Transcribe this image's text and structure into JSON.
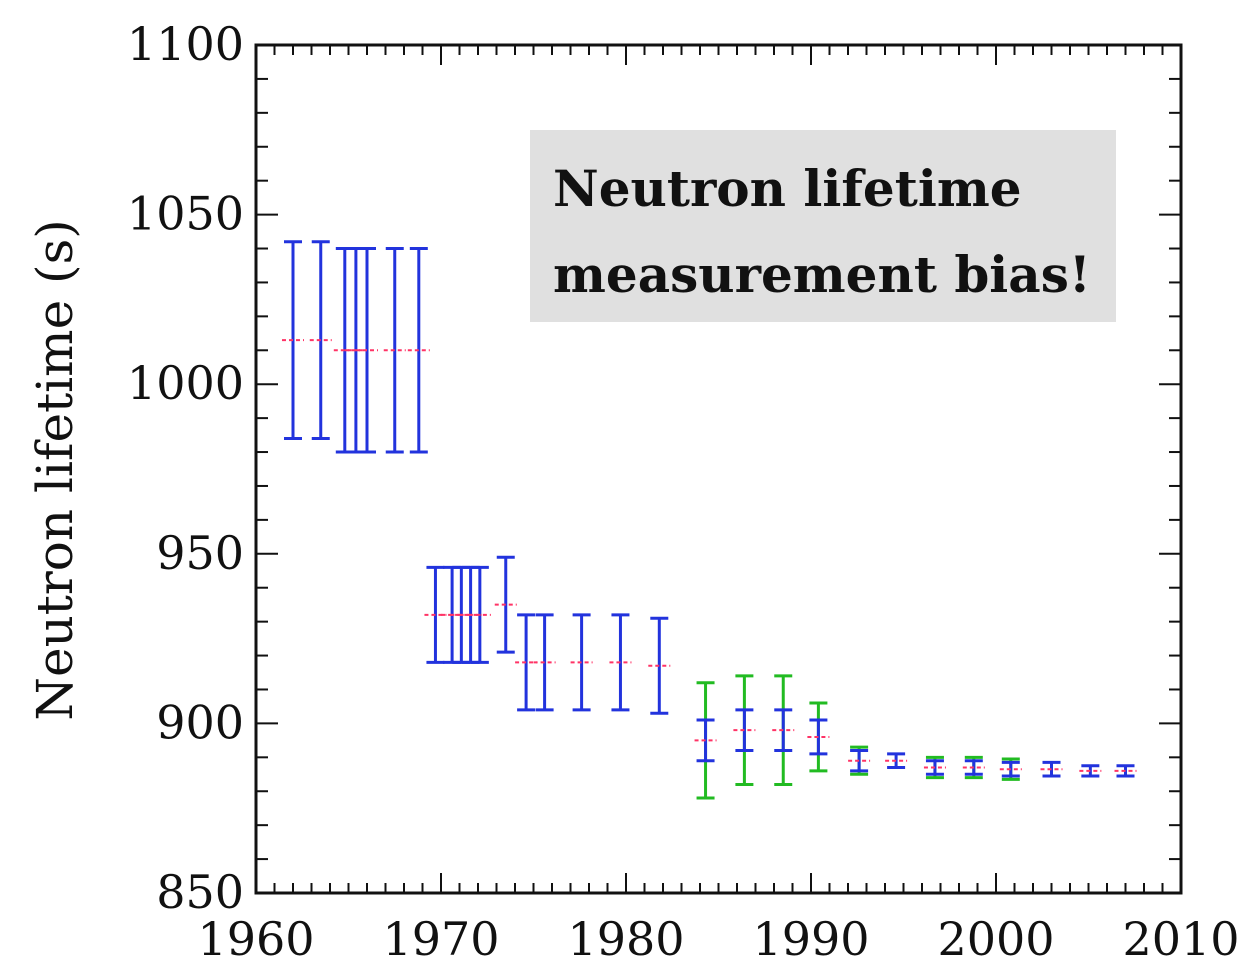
{
  "chart_data": {
    "type": "scatter",
    "title": "",
    "xlabel": "",
    "ylabel": "Neutron lifetime (s)",
    "xlim": [
      1960,
      2010
    ],
    "ylim": [
      850,
      1100
    ],
    "x_ticks": [
      1960,
      1970,
      1980,
      1990,
      2000,
      2010
    ],
    "y_ticks": [
      850,
      900,
      950,
      1000,
      1050,
      1100
    ],
    "x_tick_labels": [
      "1960",
      "1970",
      "1980",
      "1990",
      "2000",
      "2010"
    ],
    "y_tick_labels": [
      "850",
      "900",
      "950",
      "1000",
      "1050",
      "1100"
    ],
    "annotation": {
      "lines": [
        "Neutron lifetime",
        "measurement bias!"
      ],
      "background": "#e0e0e0"
    },
    "colors": {
      "blue": "#2233dd",
      "green": "#22bb22",
      "center": "#ff3366"
    },
    "series": [
      {
        "color": "blue",
        "points": [
          {
            "x": 1962,
            "y": 1013,
            "err": 29
          },
          {
            "x": 1963.5,
            "y": 1013,
            "err": 29
          },
          {
            "x": 1964.8,
            "y": 1010,
            "err": 30
          },
          {
            "x": 1965.4,
            "y": 1010,
            "err": 30
          },
          {
            "x": 1966,
            "y": 1010,
            "err": 30
          },
          {
            "x": 1967.5,
            "y": 1010,
            "err": 30
          },
          {
            "x": 1968.8,
            "y": 1010,
            "err": 30
          },
          {
            "x": 1969.7,
            "y": 932,
            "err": 14
          },
          {
            "x": 1970.6,
            "y": 932,
            "err": 14
          },
          {
            "x": 1971.1,
            "y": 932,
            "err": 14
          },
          {
            "x": 1971.6,
            "y": 932,
            "err": 14
          },
          {
            "x": 1972.1,
            "y": 932,
            "err": 14
          },
          {
            "x": 1973.5,
            "y": 935,
            "err": 14
          },
          {
            "x": 1974.6,
            "y": 918,
            "err": 14
          },
          {
            "x": 1975.6,
            "y": 918,
            "err": 14
          },
          {
            "x": 1977.6,
            "y": 918,
            "err": 14
          },
          {
            "x": 1979.7,
            "y": 918,
            "err": 14
          },
          {
            "x": 1981.8,
            "y": 917,
            "err": 14
          },
          {
            "x": 1984.3,
            "y": 895,
            "err": 6
          },
          {
            "x": 1986.4,
            "y": 898,
            "err": 6
          },
          {
            "x": 1988.5,
            "y": 898,
            "err": 6
          },
          {
            "x": 1990.4,
            "y": 896,
            "err": 5
          },
          {
            "x": 1992.6,
            "y": 889,
            "err": 3
          },
          {
            "x": 1994.6,
            "y": 889,
            "err": 2
          },
          {
            "x": 1996.7,
            "y": 887,
            "err": 2
          },
          {
            "x": 1998.8,
            "y": 887,
            "err": 2
          },
          {
            "x": 2000.8,
            "y": 886.5,
            "err": 2
          },
          {
            "x": 2003,
            "y": 886.5,
            "err": 2
          },
          {
            "x": 2005.1,
            "y": 886,
            "err": 1.5
          },
          {
            "x": 2007,
            "y": 886,
            "err": 1.5
          }
        ]
      },
      {
        "color": "green",
        "points": [
          {
            "x": 1984.3,
            "y": 895,
            "err": 17
          },
          {
            "x": 1986.4,
            "y": 898,
            "err": 16
          },
          {
            "x": 1988.5,
            "y": 898,
            "err": 16
          },
          {
            "x": 1990.4,
            "y": 896,
            "err": 10
          },
          {
            "x": 1992.6,
            "y": 889,
            "err": 4
          },
          {
            "x": 1996.7,
            "y": 887,
            "err": 3
          },
          {
            "x": 1998.8,
            "y": 887,
            "err": 3
          },
          {
            "x": 2000.8,
            "y": 886.5,
            "err": 3
          }
        ]
      }
    ]
  }
}
